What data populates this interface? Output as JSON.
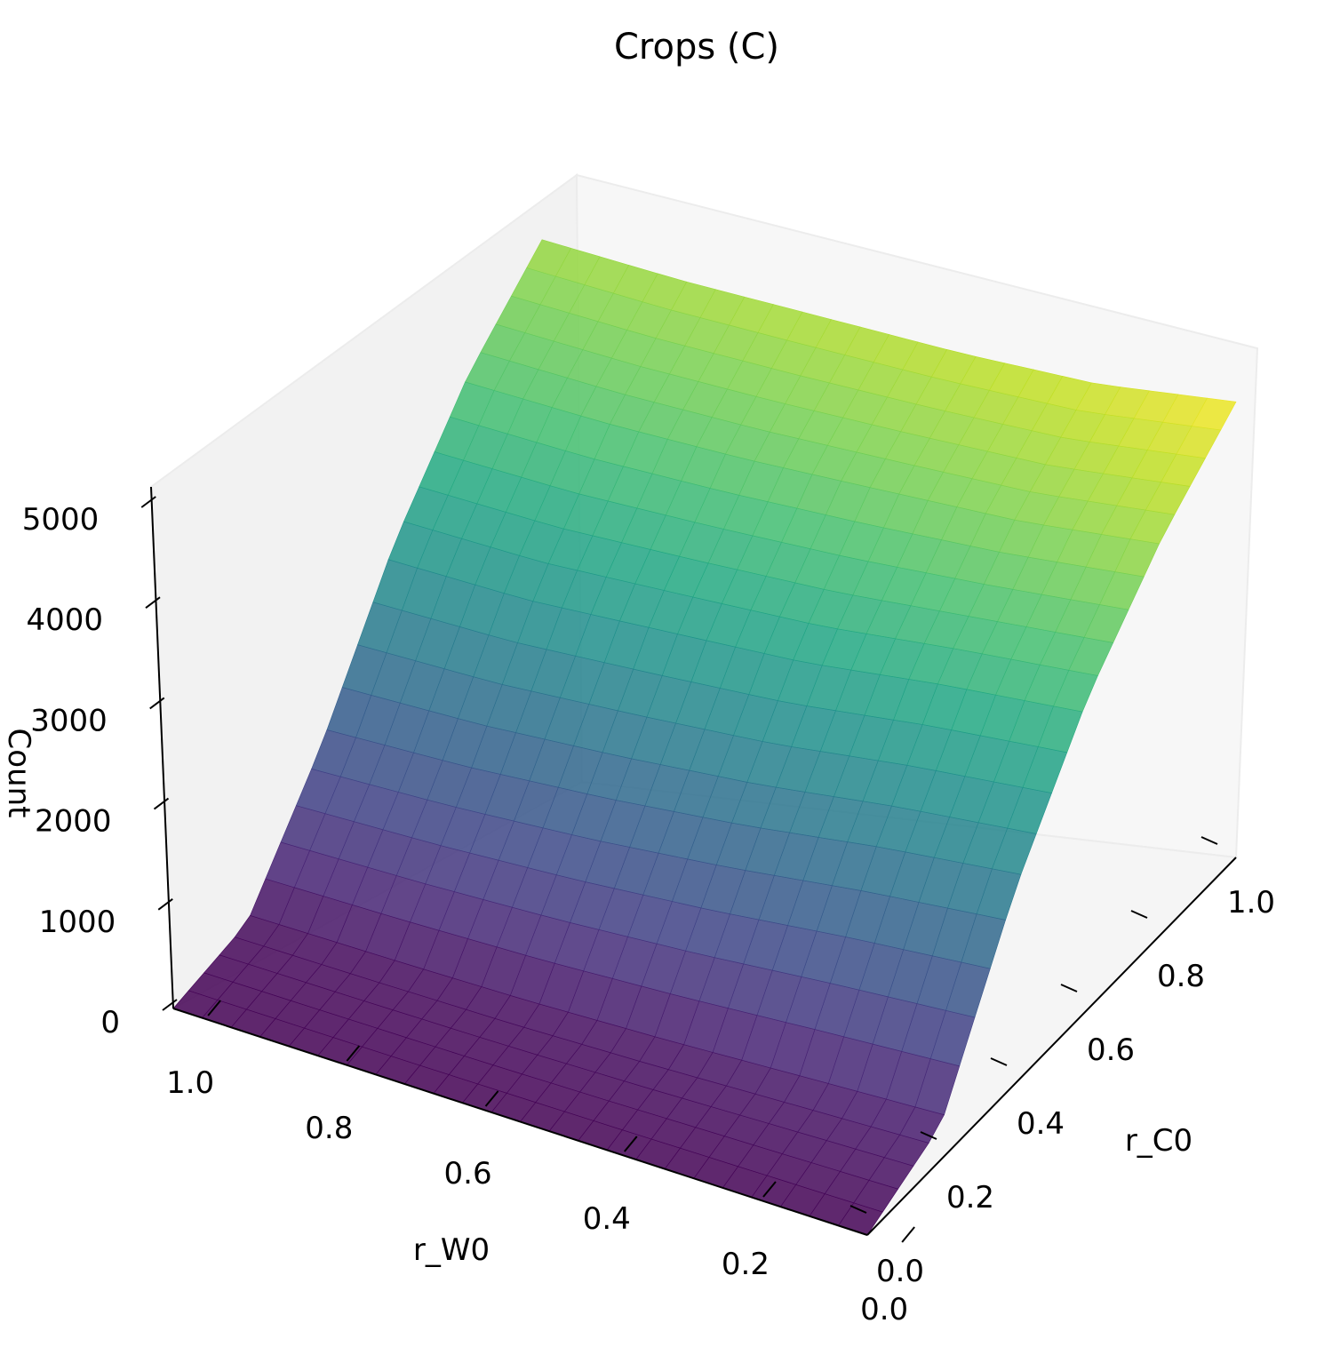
{
  "chart_data": {
    "type": "surface",
    "title": "Crops (C)",
    "xlabel": "r_W0",
    "ylabel": "r_C0",
    "zlabel": "Count",
    "xlim": [
      0.0,
      1.0
    ],
    "ylim": [
      0.0,
      1.0
    ],
    "zlim": [
      0,
      5000
    ],
    "x_ticks": [
      "0.0",
      "0.2",
      "0.4",
      "0.6",
      "0.8",
      "1.0"
    ],
    "y_ticks": [
      "0.0",
      "0.2",
      "0.4",
      "0.6",
      "0.8",
      "1.0"
    ],
    "z_ticks": [
      "0",
      "1000",
      "2000",
      "3000",
      "4000",
      "5000"
    ],
    "colormap": "viridis",
    "z_grid_sample": {
      "x": [
        0.0,
        0.2,
        0.4,
        0.6,
        0.8,
        1.0
      ],
      "y": [
        0.0,
        0.2,
        0.4,
        0.6,
        0.8,
        1.0
      ],
      "z_rows_by_y": [
        [
          0,
          0,
          0,
          0,
          0,
          0
        ],
        [
          380,
          300,
          220,
          160,
          130,
          110
        ],
        [
          2100,
          1900,
          1650,
          1450,
          1300,
          1200
        ],
        [
          3400,
          3200,
          2950,
          2800,
          2650,
          2600
        ],
        [
          4300,
          4050,
          3900,
          3750,
          3650,
          3600
        ],
        [
          4950,
          4650,
          4500,
          4400,
          4300,
          4250
        ]
      ]
    }
  }
}
